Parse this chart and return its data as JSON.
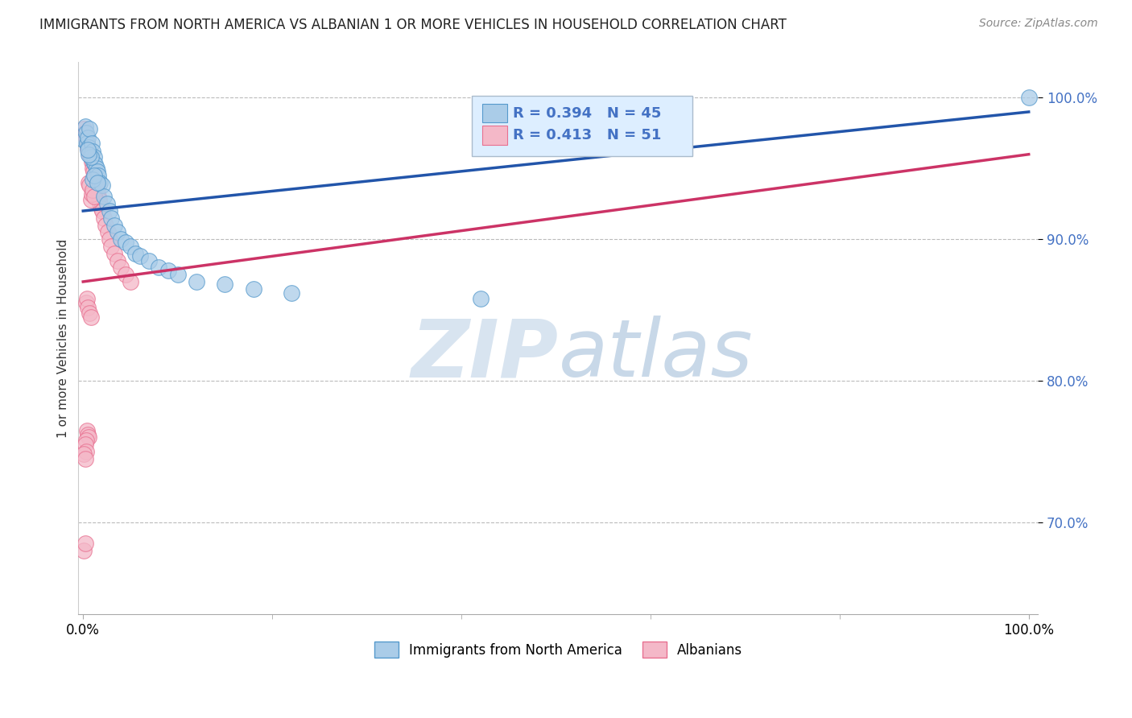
{
  "title": "IMMIGRANTS FROM NORTH AMERICA VS ALBANIAN 1 OR MORE VEHICLES IN HOUSEHOLD CORRELATION CHART",
  "source": "Source: ZipAtlas.com",
  "ylabel": "1 or more Vehicles in Household",
  "ylabel_ticks": [
    "70.0%",
    "80.0%",
    "90.0%",
    "100.0%"
  ],
  "ylabel_tick_vals": [
    0.7,
    0.8,
    0.9,
    1.0
  ],
  "ylim": [
    0.635,
    1.025
  ],
  "xlim": [
    -0.005,
    1.01
  ],
  "legend_blue_label": "Immigrants from North America",
  "legend_pink_label": "Albanians",
  "R_blue": 0.394,
  "N_blue": 45,
  "R_pink": 0.413,
  "N_pink": 51,
  "blue_color": "#aacce8",
  "pink_color": "#f4b8c8",
  "blue_edge": "#5599cc",
  "pink_edge": "#e87090",
  "trendline_blue": "#2255aa",
  "trendline_pink": "#cc3366",
  "blue_x": [
    0.001,
    0.002,
    0.003,
    0.004,
    0.005,
    0.006,
    0.007,
    0.008,
    0.009,
    0.01,
    0.011,
    0.012,
    0.013,
    0.014,
    0.015,
    0.016,
    0.018,
    0.02,
    0.022,
    0.025,
    0.028,
    0.03,
    0.033,
    0.036,
    0.04,
    0.045,
    0.05,
    0.055,
    0.06,
    0.07,
    0.08,
    0.09,
    0.1,
    0.12,
    0.15,
    0.18,
    0.22,
    0.01,
    0.008,
    0.012,
    0.006,
    0.015,
    0.42,
    0.005,
    1.0
  ],
  "blue_y": [
    0.97,
    0.98,
    0.975,
    0.968,
    0.972,
    0.965,
    0.978,
    0.96,
    0.968,
    0.962,
    0.955,
    0.958,
    0.953,
    0.95,
    0.948,
    0.945,
    0.94,
    0.938,
    0.93,
    0.925,
    0.92,
    0.915,
    0.91,
    0.905,
    0.9,
    0.898,
    0.895,
    0.89,
    0.888,
    0.885,
    0.88,
    0.878,
    0.875,
    0.87,
    0.868,
    0.865,
    0.862,
    0.942,
    0.958,
    0.945,
    0.96,
    0.94,
    0.858,
    0.963,
    1.0
  ],
  "pink_x": [
    0.001,
    0.002,
    0.003,
    0.004,
    0.005,
    0.006,
    0.007,
    0.008,
    0.009,
    0.01,
    0.011,
    0.012,
    0.013,
    0.014,
    0.015,
    0.016,
    0.017,
    0.018,
    0.019,
    0.02,
    0.022,
    0.024,
    0.026,
    0.028,
    0.03,
    0.033,
    0.036,
    0.04,
    0.045,
    0.05,
    0.006,
    0.007,
    0.008,
    0.009,
    0.01,
    0.012,
    0.003,
    0.004,
    0.005,
    0.007,
    0.008,
    0.004,
    0.005,
    0.006,
    0.003,
    0.002,
    0.003,
    0.001,
    0.002,
    0.001,
    0.002
  ],
  "pink_y": [
    0.978,
    0.975,
    0.972,
    0.968,
    0.965,
    0.962,
    0.96,
    0.958,
    0.955,
    0.95,
    0.948,
    0.945,
    0.942,
    0.938,
    0.935,
    0.93,
    0.928,
    0.925,
    0.922,
    0.92,
    0.915,
    0.91,
    0.905,
    0.9,
    0.895,
    0.89,
    0.885,
    0.88,
    0.875,
    0.87,
    0.94,
    0.938,
    0.928,
    0.932,
    0.935,
    0.93,
    0.855,
    0.858,
    0.852,
    0.848,
    0.845,
    0.765,
    0.762,
    0.76,
    0.758,
    0.755,
    0.75,
    0.748,
    0.745,
    0.68,
    0.685
  ],
  "grid_color": "#bbbbbb",
  "bg_color": "#ffffff",
  "title_color": "#222222",
  "watermark_color": "#d8e4f0",
  "legend_box_color": "#ddeeff",
  "legend_box_edge": "#aabbcc",
  "trendline_x_start": 0.0,
  "trendline_x_end": 1.0,
  "blue_trend_y_start": 0.92,
  "blue_trend_y_end": 0.99,
  "pink_trend_y_start": 0.87,
  "pink_trend_y_end": 0.96
}
